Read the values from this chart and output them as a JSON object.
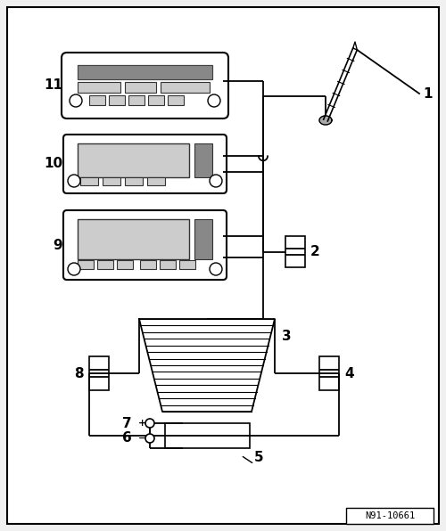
{
  "bg_color": "#f0f0f0",
  "border_color": "#000000",
  "line_color": "#000000",
  "figsize": [
    5.0,
    5.96
  ],
  "dpi": 100,
  "label_fontsize": 11,
  "watermark": "N91-10661",
  "white": "#ffffff"
}
